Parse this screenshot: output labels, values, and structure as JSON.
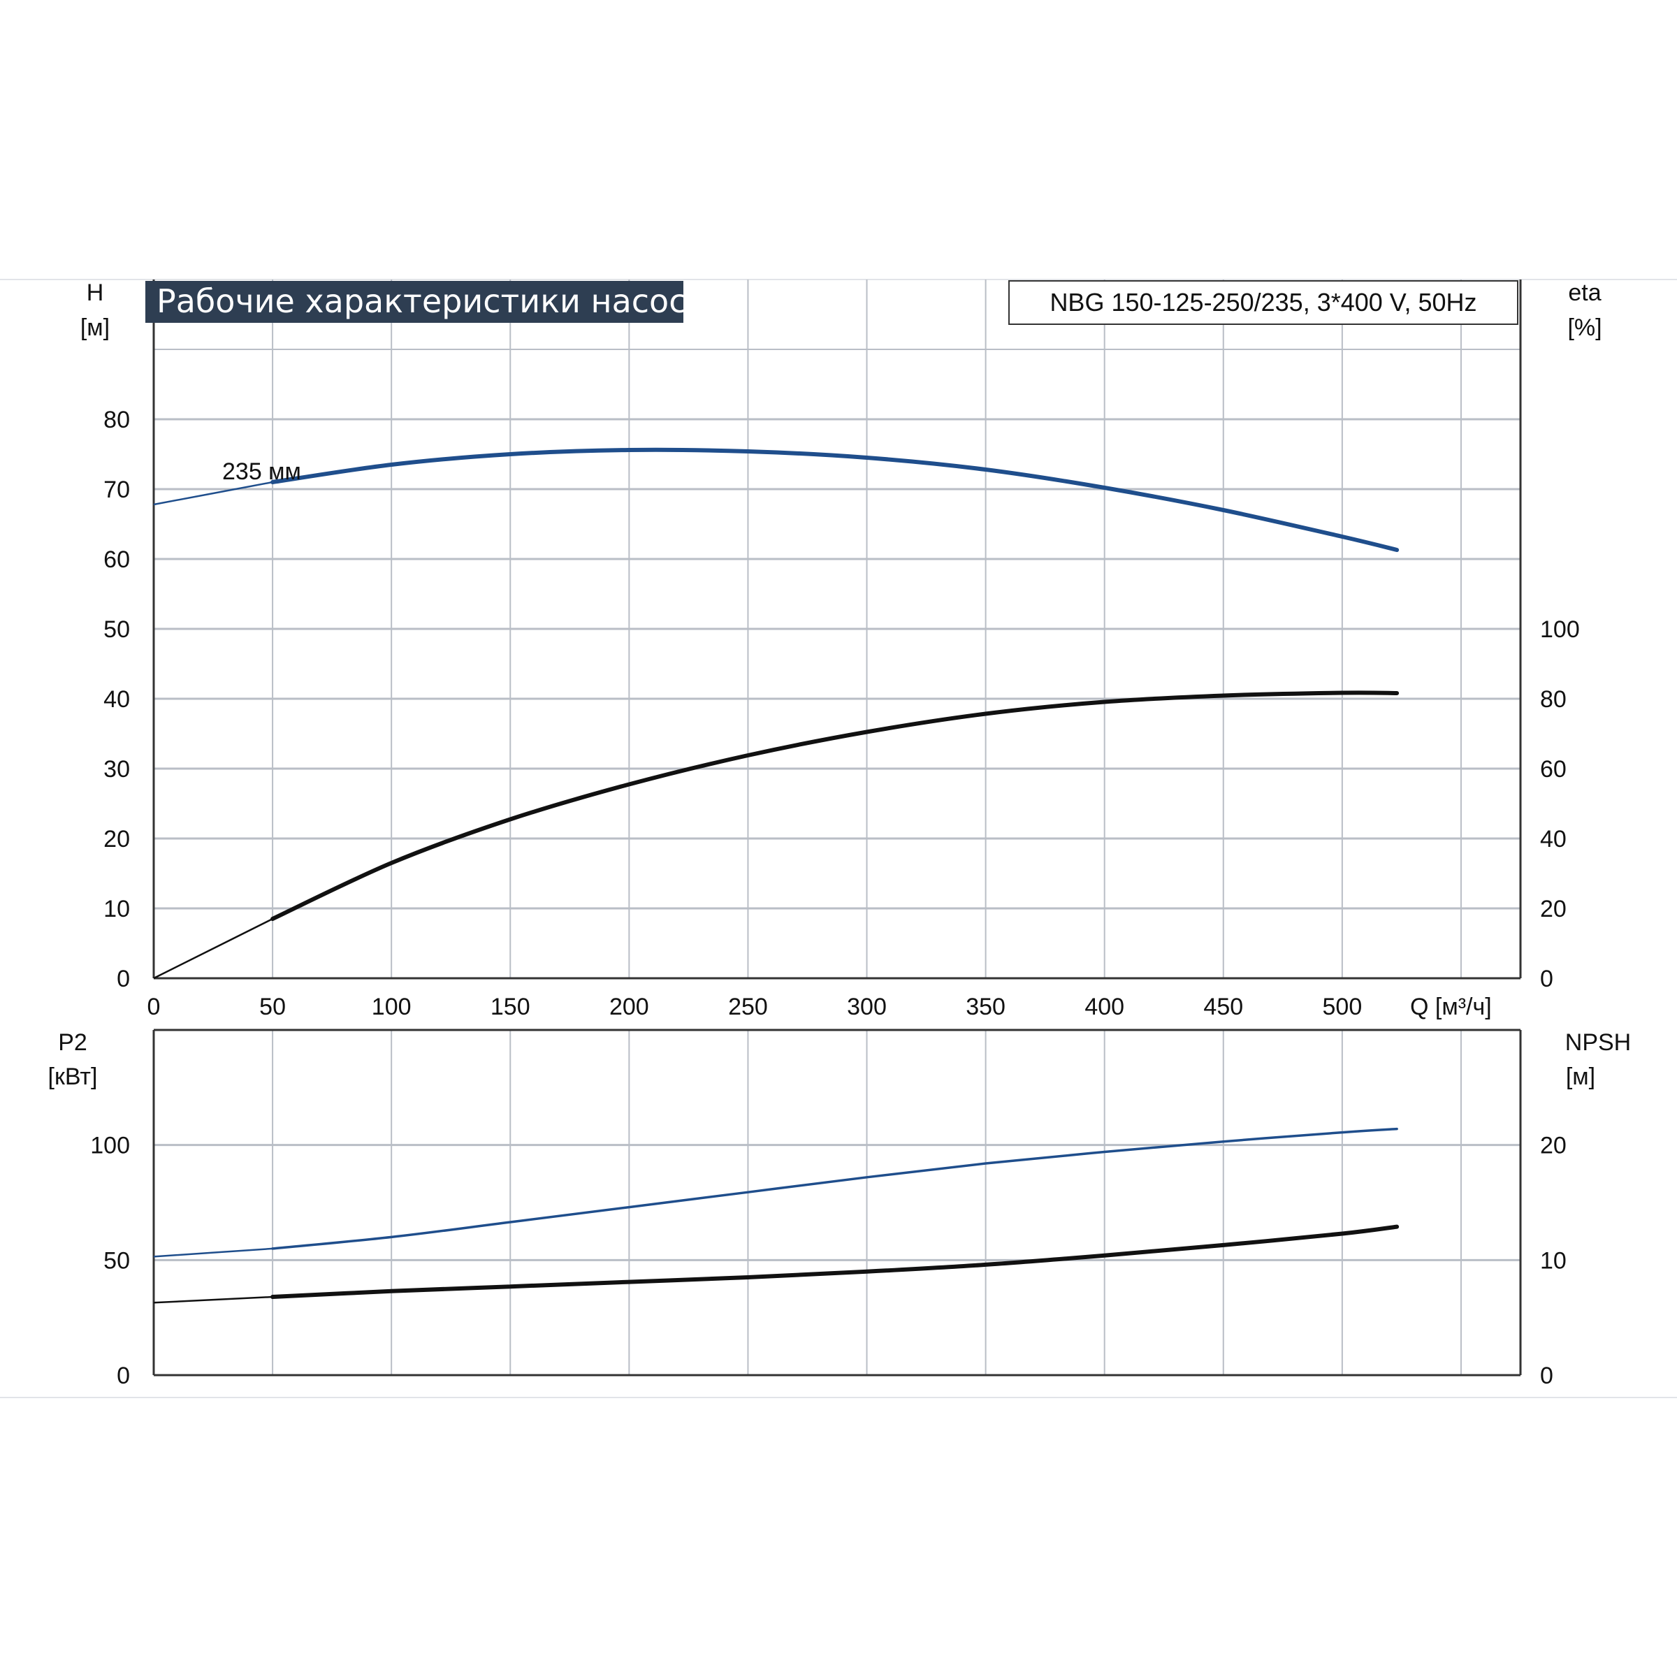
{
  "title": "Рабочие характеристики насоса",
  "model": "NBG 150-125-250/235, 3*400 V, 50Hz",
  "colors": {
    "curve_blue": "#1f4e8c",
    "curve_black": "#111111",
    "grid": "#b9bec6",
    "title_bg": "#2e3e52",
    "title_text": "#ffffff"
  },
  "chart_data": [
    {
      "type": "line",
      "x_axis": {
        "label": "Q [м³/ч]",
        "ticks": [
          0,
          50,
          100,
          150,
          200,
          250,
          300,
          350,
          400,
          450,
          500
        ],
        "range": [
          0,
          575
        ]
      },
      "y_left": {
        "label_line1": "H",
        "label_line2": "[м]",
        "ticks": [
          0,
          10,
          20,
          30,
          40,
          50,
          60,
          70,
          80
        ],
        "range": [
          0,
          90
        ]
      },
      "y_right": {
        "label_line1": "eta",
        "label_line2": "[%]",
        "ticks": [
          0,
          20,
          40,
          60,
          80,
          100
        ],
        "range": [
          0,
          180
        ]
      },
      "grid": true,
      "annotation": "235 мм",
      "series": [
        {
          "id": "head",
          "axis": "left",
          "color": "#1f4e8c",
          "x": [
            0,
            50,
            100,
            150,
            200,
            250,
            300,
            350,
            400,
            450,
            500,
            523
          ],
          "y": [
            67.8,
            71.0,
            73.5,
            75.0,
            75.6,
            75.4,
            74.5,
            72.8,
            70.2,
            67.0,
            63.2,
            61.3
          ]
        },
        {
          "id": "efficiency",
          "axis": "right",
          "color": "#111111",
          "x": [
            0,
            50,
            100,
            150,
            200,
            250,
            300,
            350,
            400,
            450,
            500,
            523
          ],
          "y": [
            0,
            17,
            33,
            45.5,
            55.5,
            63.8,
            70.5,
            75.7,
            79.1,
            80.9,
            81.7,
            81.6
          ]
        }
      ]
    },
    {
      "type": "line",
      "x_axis": {
        "ticks": [
          0,
          50,
          100,
          150,
          200,
          250,
          300,
          350,
          400,
          450,
          500
        ],
        "range": [
          0,
          575
        ]
      },
      "y_left": {
        "label_line1": "P2",
        "label_line2": "[кВт]",
        "ticks": [
          0,
          50,
          100
        ],
        "range": [
          0,
          150
        ]
      },
      "y_right": {
        "label_line1": "NPSH",
        "label_line2": "[м]",
        "ticks": [
          0,
          10,
          20
        ],
        "range": [
          0,
          30
        ]
      },
      "grid": true,
      "series": [
        {
          "id": "power",
          "axis": "left",
          "color": "#1f4e8c",
          "x": [
            0,
            50,
            100,
            150,
            200,
            250,
            300,
            350,
            400,
            450,
            500,
            523
          ],
          "y": [
            51.5,
            55.0,
            60.0,
            66.5,
            73.0,
            79.5,
            86.0,
            92.0,
            97.0,
            101.5,
            105.5,
            107.0
          ]
        },
        {
          "id": "npsh",
          "axis": "right",
          "color": "#111111",
          "x": [
            0,
            50,
            100,
            150,
            200,
            250,
            300,
            350,
            400,
            450,
            500,
            523
          ],
          "y": [
            6.3,
            6.8,
            7.3,
            7.7,
            8.1,
            8.5,
            9.0,
            9.6,
            10.4,
            11.3,
            12.3,
            12.9
          ]
        }
      ]
    }
  ]
}
